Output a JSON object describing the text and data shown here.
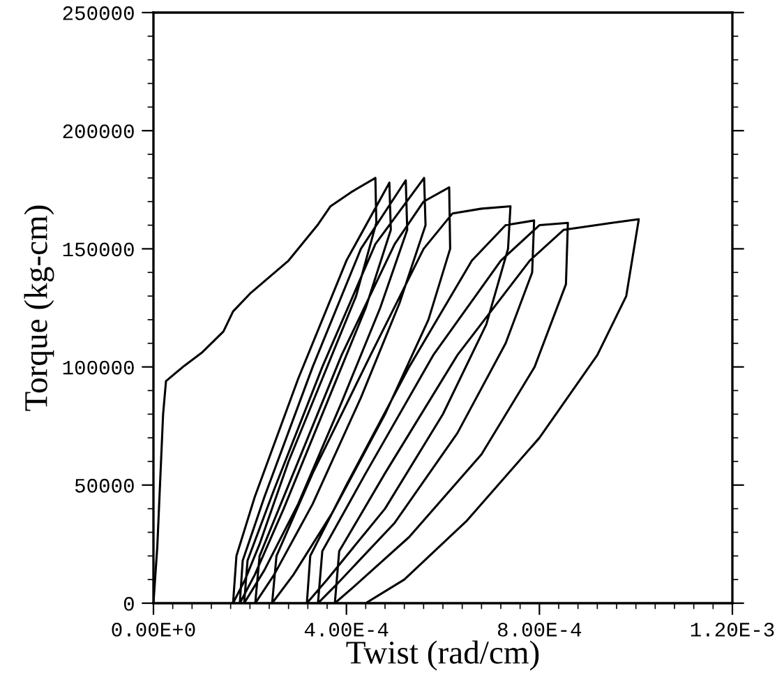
{
  "chart_data": {
    "type": "line",
    "xlabel": "Twist (rad/cm)",
    "ylabel": "Torque (kg-cm)",
    "xlim": [
      0,
      0.0012
    ],
    "ylim": [
      0,
      250000
    ],
    "xticks": [
      {
        "value": 0,
        "label": "0.00E+0"
      },
      {
        "value": 0.0004,
        "label": "4.00E-4"
      },
      {
        "value": 0.0008,
        "label": "8.00E-4"
      },
      {
        "value": 0.0012,
        "label": "1.20E-3"
      }
    ],
    "yticks": [
      0,
      50000,
      100000,
      150000,
      200000,
      250000
    ],
    "marker": "none",
    "line_style": "solid",
    "series": [
      {
        "color": "#000000",
        "x": [
          0,
          8e-06,
          2e-05,
          2.6e-05,
          6.4e-05,
          0.0001,
          0.000145,
          0.000165,
          0.0002,
          0.00028,
          0.00034,
          0.000367,
          0.00041,
          0.00046,
          0.000462,
          0.00042,
          0.00035,
          0.00028,
          0.00022,
          0.00019,
          0.000165,
          0.000172,
          0.00021,
          0.0003,
          0.0004,
          0.000489,
          0.000492,
          0.00044,
          0.00036,
          0.00027,
          0.00021,
          0.000179,
          0.000185,
          0.00023,
          0.00033,
          0.00043,
          0.000523,
          0.000526,
          0.00047,
          0.00039,
          0.0003,
          0.00023,
          0.000188,
          0.000195,
          0.00025,
          0.00035,
          0.00046,
          0.000561,
          0.000564,
          0.00051,
          0.00043,
          0.00033,
          0.00025,
          0.000211,
          0.00022,
          0.00028,
          0.00039,
          0.0005,
          0.00056,
          0.000613,
          0.000615,
          0.00057,
          0.00048,
          0.00037,
          0.00029,
          0.000246,
          0.000255,
          0.00033,
          0.00045,
          0.00056,
          0.00062,
          0.00068,
          0.00074,
          0.000735,
          0.00069,
          0.0006,
          0.00048,
          0.00036,
          0.000318,
          0.000325,
          0.0004,
          0.00053,
          0.00066,
          0.00073,
          0.000789,
          0.000785,
          0.00073,
          0.00063,
          0.0005,
          0.00038,
          0.000341,
          0.00035,
          0.00044,
          0.00058,
          0.00072,
          0.0008,
          0.000859,
          0.000855,
          0.00079,
          0.00068,
          0.00053,
          0.00041,
          0.000376,
          0.000385,
          0.00048,
          0.00063,
          0.00078,
          0.00085,
          0.00095,
          0.001006,
          0.00098,
          0.00092,
          0.0008,
          0.00065,
          0.00052,
          0.00044
        ],
        "values": [
          0,
          24000,
          80000,
          94000,
          100500,
          106000,
          115000,
          123500,
          131000,
          145000,
          160000,
          168000,
          174000,
          180000,
          161000,
          130000,
          95000,
          60000,
          25000,
          10000,
          0,
          20000,
          45000,
          95000,
          145000,
          178000,
          158000,
          125000,
          85000,
          40000,
          12000,
          0,
          18000,
          45000,
          100000,
          150000,
          179000,
          158000,
          125000,
          85000,
          42000,
          14000,
          0,
          18000,
          48000,
          100000,
          152000,
          180000,
          160000,
          127000,
          87000,
          42000,
          12000,
          0,
          20000,
          50000,
          105000,
          152000,
          170000,
          176000,
          150000,
          120000,
          80000,
          38000,
          12000,
          0,
          20000,
          55000,
          105000,
          150000,
          165000,
          167000,
          168000,
          150000,
          118000,
          80000,
          40000,
          10000,
          0,
          20000,
          50000,
          100000,
          145000,
          160000,
          162000,
          140000,
          110000,
          72000,
          34000,
          8000,
          0,
          22000,
          55000,
          105000,
          145000,
          160000,
          161000,
          135000,
          100000,
          63000,
          28000,
          6000,
          0,
          22000,
          55000,
          105000,
          145000,
          158000,
          161000,
          162500,
          130000,
          105000,
          70000,
          35000,
          10000,
          0
        ]
      }
    ]
  }
}
